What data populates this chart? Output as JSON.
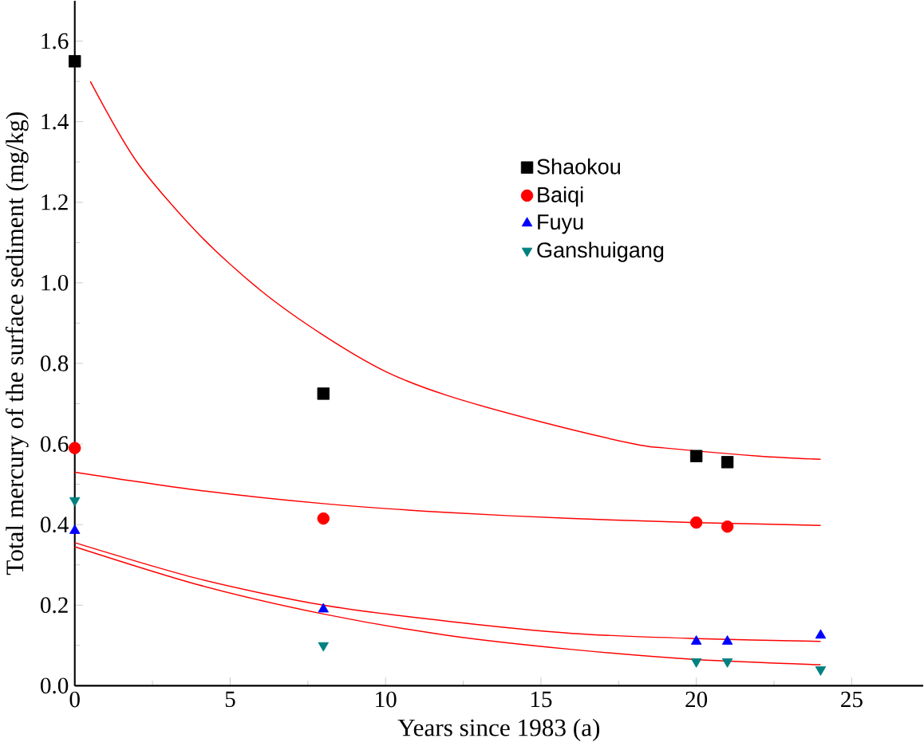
{
  "chart_data": {
    "type": "scatter",
    "xlabel": "Years since 1983 (a)",
    "ylabel": "Total mercury of the surface sediment (mg/kg)",
    "xlim": [
      0,
      27.3
    ],
    "ylim": [
      0,
      1.7
    ],
    "xticks": [
      0,
      5,
      10,
      15,
      20,
      25
    ],
    "yticks": [
      {
        "value": 0,
        "label": "0.0"
      },
      {
        "value": 0.2,
        "label": "0.2"
      },
      {
        "value": 0.4,
        "label": "0.4"
      },
      {
        "value": 0.6,
        "label": "0.6"
      },
      {
        "value": 0.8,
        "label": "0.8"
      },
      {
        "value": 1.0,
        "label": "1.0"
      },
      {
        "value": 1.2,
        "label": "1.2"
      },
      {
        "value": 1.4,
        "label": "1.4"
      },
      {
        "value": 1.6,
        "label": "1.6"
      }
    ],
    "legend": "right",
    "grid": false,
    "series": [
      {
        "name": "Shaokou",
        "color": "#000000",
        "marker": "square",
        "x": [
          0,
          8,
          20,
          21
        ],
        "values": [
          1.55,
          0.725,
          0.57,
          0.555
        ]
      },
      {
        "name": "Baiqi",
        "color": "#ff0000",
        "marker": "circle",
        "x": [
          0,
          8,
          20,
          21
        ],
        "values": [
          0.59,
          0.415,
          0.405,
          0.395
        ]
      },
      {
        "name": "Fuyu",
        "color": "#0000ff",
        "marker": "triangle",
        "x": [
          0,
          8,
          20,
          21,
          24
        ],
        "values": [
          0.385,
          0.19,
          0.11,
          0.11,
          0.125
        ]
      },
      {
        "name": "Ganshuigang",
        "color": "#008080",
        "marker": "triangle-down",
        "x": [
          0,
          8,
          20,
          21,
          24
        ],
        "values": [
          0.46,
          0.1,
          0.06,
          0.06,
          0.04
        ]
      },
      {
        "type": "line",
        "color": "#ff0000",
        "x": [
          0.5,
          2,
          4,
          6,
          8,
          10,
          12,
          15,
          18,
          19,
          22,
          24
        ],
        "values": [
          1.5,
          1.3,
          1.12,
          0.98,
          0.87,
          0.78,
          0.72,
          0.655,
          0.6,
          0.59,
          0.57,
          0.562
        ]
      },
      {
        "type": "line",
        "color": "#ff0000",
        "x": [
          0,
          4,
          8,
          12,
          16,
          20,
          24
        ],
        "values": [
          0.53,
          0.485,
          0.452,
          0.43,
          0.415,
          0.405,
          0.398
        ]
      },
      {
        "type": "line",
        "color": "#ff0000",
        "x": [
          0,
          4,
          8,
          12,
          16,
          20,
          24
        ],
        "values": [
          0.355,
          0.265,
          0.2,
          0.16,
          0.13,
          0.117,
          0.11
        ]
      },
      {
        "type": "line",
        "color": "#ff0000",
        "x": [
          0,
          4,
          8,
          12,
          16,
          20,
          24
        ],
        "values": [
          0.345,
          0.25,
          0.178,
          0.125,
          0.09,
          0.065,
          0.052
        ]
      }
    ]
  }
}
